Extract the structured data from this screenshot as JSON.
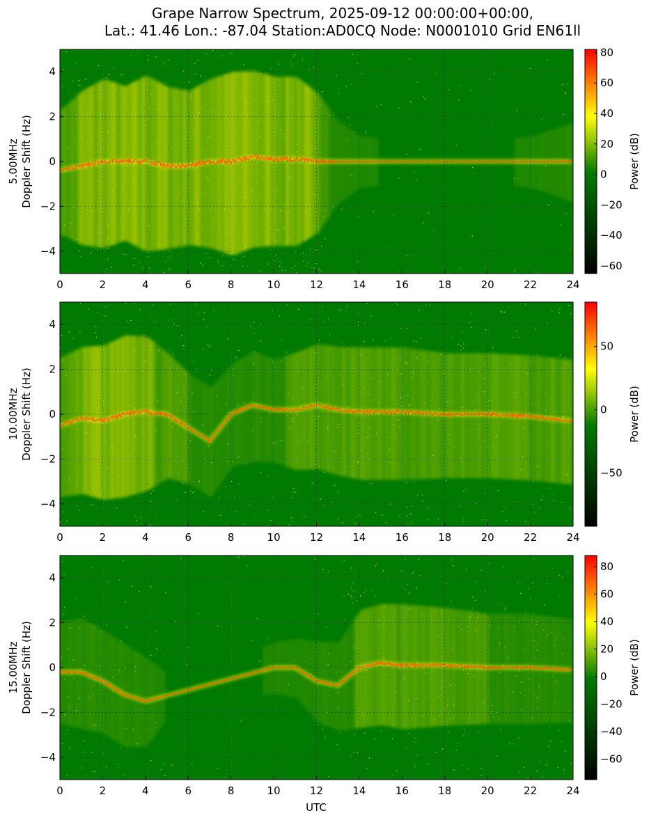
{
  "chart_data": {
    "type": "heatmap",
    "title_line1": "Grape Narrow Spectrum, 2025-09-12 00:00:00+00:00,",
    "title_line2": "Lat.: 41.46 Lon.: -87.04 Station:AD0CQ Node: N0001010 Grid EN61ll",
    "xlabel": "UTC",
    "xlim": [
      0,
      24
    ],
    "xticks": [
      0,
      2,
      4,
      6,
      8,
      10,
      12,
      14,
      16,
      18,
      20,
      22,
      24
    ],
    "ylim": [
      -5,
      5
    ],
    "yticks": [
      -4,
      -2,
      0,
      2,
      4
    ],
    "grid": true,
    "colormap": [
      "#000000",
      "#007a00",
      "#ffff00",
      "#ff0000"
    ],
    "panels": [
      {
        "frequency_label": "5.00MHz",
        "ylabel": "Doppler Shift (Hz)",
        "colorbar_label": "Power (dB)",
        "colorbar_range": [
          -65,
          82
        ],
        "colorbar_ticks": [
          -60,
          -40,
          -20,
          0,
          20,
          40,
          60,
          80
        ],
        "carrier_trace_hz": [
          [
            0,
            -0.4
          ],
          [
            1,
            -0.2
          ],
          [
            2,
            0.0
          ],
          [
            3,
            0.0
          ],
          [
            4,
            0.0
          ],
          [
            5,
            -0.2
          ],
          [
            6,
            -0.2
          ],
          [
            7,
            0.0
          ],
          [
            8,
            0.0
          ],
          [
            9,
            0.2
          ],
          [
            10,
            0.1
          ],
          [
            11,
            0.1
          ],
          [
            12,
            0.0
          ],
          [
            14,
            0.0
          ],
          [
            16,
            0.0
          ],
          [
            18,
            0.0
          ],
          [
            20,
            0.0
          ],
          [
            22,
            0.0
          ],
          [
            24,
            0.0
          ]
        ],
        "activity": [
          [
            0,
            0.6
          ],
          [
            1,
            0.8
          ],
          [
            2,
            0.9
          ],
          [
            3,
            0.8
          ],
          [
            4,
            0.95
          ],
          [
            5,
            0.85
          ],
          [
            6,
            0.8
          ],
          [
            7,
            0.9
          ],
          [
            8,
            1.0
          ],
          [
            9,
            0.95
          ],
          [
            10,
            0.9
          ],
          [
            11,
            0.9
          ],
          [
            12,
            0.7
          ],
          [
            13,
            0.3
          ],
          [
            14,
            0.1
          ],
          [
            16,
            0.05
          ],
          [
            18,
            0.05
          ],
          [
            20,
            0.05
          ],
          [
            22,
            0.1
          ],
          [
            24,
            0.3
          ]
        ]
      },
      {
        "frequency_label": "10.00MHz",
        "ylabel": "Doppler Shift (Hz)",
        "colorbar_label": "Power (dB)",
        "colorbar_range": [
          -92,
          85
        ],
        "colorbar_ticks": [
          -50,
          0,
          50
        ],
        "carrier_trace_hz": [
          [
            0,
            -0.5
          ],
          [
            1,
            -0.2
          ],
          [
            2,
            -0.3
          ],
          [
            3,
            0.0
          ],
          [
            4,
            0.1
          ],
          [
            5,
            0.0
          ],
          [
            6,
            -0.6
          ],
          [
            7,
            -1.2
          ],
          [
            8,
            0.0
          ],
          [
            9,
            0.4
          ],
          [
            10,
            0.2
          ],
          [
            11,
            0.2
          ],
          [
            12,
            0.4
          ],
          [
            13,
            0.2
          ],
          [
            14,
            0.1
          ],
          [
            16,
            0.1
          ],
          [
            18,
            0.0
          ],
          [
            20,
            0.0
          ],
          [
            22,
            -0.1
          ],
          [
            24,
            -0.3
          ]
        ],
        "activity": [
          [
            0,
            0.7
          ],
          [
            1,
            0.75
          ],
          [
            2,
            0.8
          ],
          [
            3,
            0.85
          ],
          [
            4,
            0.8
          ],
          [
            5,
            0.6
          ],
          [
            6,
            0.5
          ],
          [
            7,
            0.5
          ],
          [
            8,
            0.45
          ],
          [
            9,
            0.5
          ],
          [
            10,
            0.45
          ],
          [
            11,
            0.55
          ],
          [
            12,
            0.6
          ],
          [
            14,
            0.65
          ],
          [
            16,
            0.65
          ],
          [
            18,
            0.6
          ],
          [
            20,
            0.6
          ],
          [
            22,
            0.6
          ],
          [
            24,
            0.6
          ]
        ]
      },
      {
        "frequency_label": "15.00MHz",
        "ylabel": "Doppler Shift (Hz)",
        "colorbar_label": "Power (dB)",
        "colorbar_range": [
          -75,
          88
        ],
        "colorbar_ticks": [
          -60,
          -40,
          -20,
          0,
          20,
          40,
          60,
          80
        ],
        "carrier_trace_hz": [
          [
            0,
            -0.2
          ],
          [
            1,
            -0.2
          ],
          [
            2,
            -0.6
          ],
          [
            3,
            -1.2
          ],
          [
            4,
            -1.5
          ],
          [
            10,
            0.0
          ],
          [
            11,
            0.0
          ],
          [
            12,
            -0.6
          ],
          [
            13,
            -0.8
          ],
          [
            14,
            0.0
          ],
          [
            15,
            0.2
          ],
          [
            16,
            0.1
          ],
          [
            18,
            0.1
          ],
          [
            20,
            0.0
          ],
          [
            22,
            0.0
          ],
          [
            24,
            -0.1
          ]
        ],
        "activity": [
          [
            0,
            0.45
          ],
          [
            1,
            0.5
          ],
          [
            2,
            0.45
          ],
          [
            3,
            0.45
          ],
          [
            4,
            0.35
          ],
          [
            5,
            0.05
          ],
          [
            6,
            0.03
          ],
          [
            8,
            0.03
          ],
          [
            10,
            0.1
          ],
          [
            11,
            0.15
          ],
          [
            12,
            0.3
          ],
          [
            13,
            0.35
          ],
          [
            14,
            0.55
          ],
          [
            16,
            0.6
          ],
          [
            18,
            0.55
          ],
          [
            20,
            0.5
          ],
          [
            22,
            0.5
          ],
          [
            24,
            0.45
          ]
        ]
      }
    ]
  }
}
